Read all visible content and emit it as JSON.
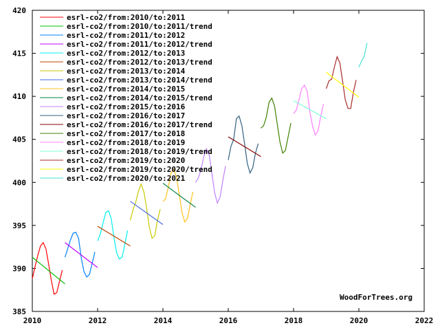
{
  "chart_data": {
    "type": "line",
    "title": "",
    "xlabel": "",
    "ylabel": "",
    "xlim": [
      2010,
      2022
    ],
    "ylim": [
      385,
      420
    ],
    "xticks": [
      "2010",
      "2012",
      "2014",
      "2016",
      "2018",
      "2020",
      "2022"
    ],
    "yticks": [
      "385",
      "390",
      "395",
      "400",
      "405",
      "410",
      "415",
      "420"
    ],
    "grid": false,
    "legend_position": "top-left",
    "watermark": "WoodForTrees.org",
    "series": [
      {
        "name": "esrl-co2/from:2010/to:2011",
        "color": "#ff0000",
        "start": 2010,
        "values": [
          388.8,
          390.2,
          391.5,
          392.6,
          393.0,
          392.3,
          390.5,
          388.6,
          387.0,
          387.2,
          388.5,
          389.8
        ]
      },
      {
        "name": "esrl-co2/from:2010/to:2011/trend",
        "color": "#00c000",
        "trend": true,
        "range": [
          2010,
          2011
        ],
        "values": [
          391.3,
          388.2
        ]
      },
      {
        "name": "esrl-co2/from:2011/to:2012",
        "color": "#0080ff",
        "start": 2011,
        "values": [
          391.3,
          392.3,
          393.3,
          394.1,
          394.2,
          393.5,
          391.2,
          389.6,
          389.0,
          389.3,
          390.6,
          391.9
        ]
      },
      {
        "name": "esrl-co2/from:2011/to:2012/trend",
        "color": "#c000ff",
        "trend": true,
        "range": [
          2011,
          2012
        ],
        "values": [
          393.0,
          390.1
        ]
      },
      {
        "name": "esrl-co2/from:2012/to:2013",
        "color": "#00eeee",
        "start": 2012,
        "values": [
          393.2,
          394.0,
          395.3,
          396.5,
          396.7,
          395.8,
          393.6,
          391.8,
          391.1,
          391.3,
          392.8,
          394.4
        ]
      },
      {
        "name": "esrl-co2/from:2012/to:2013/trend",
        "color": "#c04000",
        "trend": true,
        "range": [
          2012,
          2013
        ],
        "values": [
          394.9,
          392.6
        ]
      },
      {
        "name": "esrl-co2/from:2013/to:2014",
        "color": "#c8c800",
        "start": 2013,
        "values": [
          395.6,
          396.8,
          397.7,
          399.0,
          399.8,
          398.9,
          397.0,
          394.8,
          393.5,
          393.8,
          395.6,
          396.9
        ]
      },
      {
        "name": "esrl-co2/from:2013/to:2014/trend",
        "color": "#4169e1",
        "trend": true,
        "range": [
          2013,
          2014
        ],
        "values": [
          397.8,
          395.1
        ]
      },
      {
        "name": "esrl-co2/from:2014/to:2015",
        "color": "#ffc020",
        "start": 2014,
        "values": [
          397.8,
          398.1,
          399.5,
          401.1,
          401.5,
          400.6,
          398.6,
          396.5,
          395.4,
          395.8,
          397.4,
          398.9
        ]
      },
      {
        "name": "esrl-co2/from:2014/to:2015/trend",
        "color": "#008040",
        "trend": true,
        "range": [
          2014,
          2015
        ],
        "values": [
          399.9,
          397.1
        ]
      },
      {
        "name": "esrl-co2/from:2015/to:2016",
        "color": "#c080ff",
        "start": 2015,
        "values": [
          400.0,
          400.5,
          401.5,
          403.0,
          403.9,
          403.2,
          401.0,
          398.8,
          397.6,
          398.3,
          400.2,
          401.9
        ]
      },
      {
        "name": "esrl-co2/from:2016/to:2017",
        "color": "#306080",
        "start": 2016,
        "values": [
          402.6,
          404.2,
          405.0,
          407.4,
          407.7,
          406.6,
          404.5,
          402.2,
          401.1,
          401.7,
          403.4,
          404.5
        ]
      },
      {
        "name": "esrl-co2/from:2016/to:2017/trend",
        "color": "#8b0000",
        "trend": true,
        "range": [
          2016,
          2017
        ],
        "values": [
          405.3,
          403.0
        ]
      },
      {
        "name": "esrl-co2/from:2017/to:2018",
        "color": "#408000",
        "start": 2017,
        "values": [
          406.3,
          406.6,
          407.6,
          409.3,
          409.8,
          408.9,
          406.8,
          404.7,
          403.4,
          403.7,
          405.3,
          406.9
        ]
      },
      {
        "name": "esrl-co2/from:2018/to:2019",
        "color": "#ff80ff",
        "start": 2018,
        "values": [
          408.0,
          408.4,
          409.6,
          410.9,
          411.3,
          410.6,
          408.2,
          406.5,
          405.5,
          406.0,
          407.7,
          409.1
        ]
      },
      {
        "name": "esrl-co2/from:2018/to:2019/trend",
        "color": "#7fffd4",
        "trend": true,
        "range": [
          2018,
          2019
        ],
        "values": [
          409.5,
          407.4
        ]
      },
      {
        "name": "esrl-co2/from:2019/to:2020",
        "color": "#a52a2a",
        "start": 2019,
        "values": [
          410.9,
          411.8,
          412.0,
          413.4,
          414.6,
          413.9,
          411.8,
          409.6,
          408.6,
          408.6,
          410.5,
          411.9
        ]
      },
      {
        "name": "esrl-co2/from:2019/to:2020/trend",
        "color": "#ffff00",
        "trend": true,
        "range": [
          2019,
          2020
        ],
        "values": [
          412.8,
          409.9
        ]
      },
      {
        "name": "esrl-co2/from:2020/to:2021",
        "color": "#40e0d0",
        "start": 2020,
        "values": [
          413.4,
          414.1,
          414.7,
          416.2
        ]
      }
    ]
  }
}
